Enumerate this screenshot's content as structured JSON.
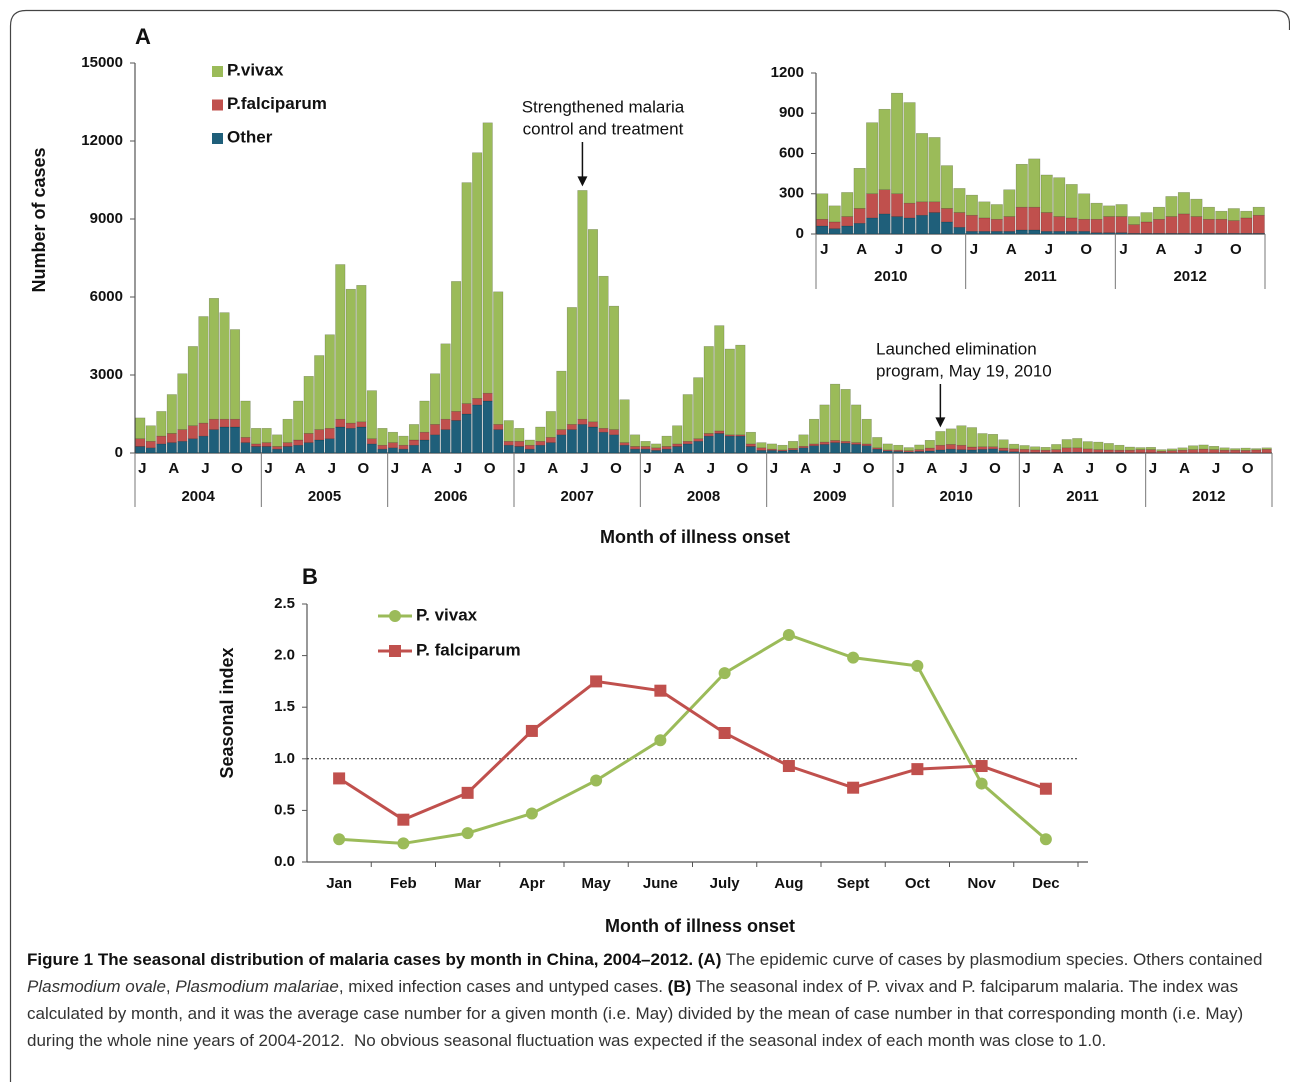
{
  "chart_data": [
    {
      "type": "stacked-bar",
      "panel_label": "A",
      "y_label": "Number of cases",
      "x_label": "Month of illness onset",
      "ylim": [
        0,
        15000
      ],
      "yticks": [
        0,
        3000,
        6000,
        9000,
        12000,
        15000
      ],
      "legend": true,
      "annotations": [
        [
          "Strengthened malaria",
          "control and treatment"
        ],
        [
          "Launched elimination",
          "program, May 19, 2010"
        ]
      ],
      "categories": [
        "J",
        null,
        null,
        "A",
        null,
        null,
        "J",
        null,
        null,
        "O",
        null,
        null,
        "J",
        null,
        null,
        "A",
        null,
        null,
        "J",
        null,
        null,
        "O",
        null,
        null,
        "J",
        null,
        null,
        "A",
        null,
        null,
        "J",
        null,
        null,
        "O",
        null,
        null,
        "J",
        null,
        null,
        "A",
        null,
        null,
        "J",
        null,
        null,
        "O",
        null,
        null,
        "J",
        null,
        null,
        "A",
        null,
        null,
        "J",
        null,
        null,
        "O",
        null,
        null,
        "J",
        null,
        null,
        "A",
        null,
        null,
        "J",
        null,
        null,
        "O",
        null,
        null,
        "J",
        null,
        null,
        "A",
        null,
        null,
        "J",
        null,
        null,
        "O",
        null,
        null,
        "J",
        null,
        null,
        "A",
        null,
        null,
        "J",
        null,
        null,
        "O",
        null,
        null,
        "J",
        null,
        null,
        "A",
        null,
        null,
        "J",
        null,
        null,
        "O",
        null,
        null
      ],
      "groups": [
        "2004",
        "2005",
        "2006",
        "2007",
        "2008",
        "2009",
        "2010",
        "2011",
        "2012"
      ],
      "series": [
        {
          "name": "Other",
          "color": "#1f5f7a",
          "values": [
            250,
            200,
            350,
            400,
            450,
            550,
            650,
            900,
            1000,
            1000,
            400,
            250,
            250,
            150,
            250,
            300,
            400,
            500,
            550,
            1000,
            950,
            1000,
            350,
            150,
            200,
            150,
            300,
            500,
            700,
            900,
            1250,
            1500,
            1850,
            2000,
            900,
            300,
            250,
            150,
            300,
            400,
            700,
            900,
            1100,
            1000,
            800,
            700,
            300,
            150,
            150,
            100,
            150,
            250,
            350,
            450,
            650,
            750,
            650,
            650,
            250,
            100,
            100,
            80,
            120,
            200,
            280,
            330,
            400,
            380,
            330,
            280,
            150,
            80,
            60,
            40,
            60,
            80,
            120,
            150,
            130,
            120,
            140,
            160,
            90,
            50,
            20,
            20,
            20,
            20,
            30,
            30,
            20,
            20,
            20,
            20,
            10,
            10,
            10,
            5,
            5,
            5,
            5,
            5,
            5,
            5,
            5,
            5,
            5,
            5
          ]
        },
        {
          "name": "P.falciparum",
          "color": "#c0504d",
          "values": [
            300,
            250,
            300,
            350,
            450,
            500,
            500,
            400,
            300,
            300,
            200,
            100,
            150,
            100,
            150,
            200,
            350,
            400,
            400,
            300,
            200,
            200,
            200,
            150,
            200,
            150,
            200,
            300,
            400,
            400,
            350,
            400,
            250,
            300,
            200,
            150,
            200,
            150,
            150,
            200,
            200,
            200,
            200,
            200,
            150,
            200,
            100,
            100,
            100,
            100,
            100,
            100,
            100,
            100,
            100,
            100,
            50,
            50,
            100,
            100,
            50,
            40,
            60,
            60,
            70,
            90,
            80,
            70,
            70,
            70,
            50,
            40,
            50,
            50,
            70,
            110,
            180,
            180,
            170,
            110,
            100,
            80,
            100,
            110,
            120,
            100,
            90,
            110,
            170,
            170,
            140,
            110,
            100,
            90,
            100,
            120,
            120,
            65,
            85,
            105,
            125,
            145,
            125,
            105,
            105,
            95,
            115,
            135
          ]
        },
        {
          "name": "P.vivax",
          "color": "#9bbb59",
          "values": [
            800,
            600,
            950,
            1500,
            2150,
            3050,
            4100,
            4650,
            4100,
            3450,
            1400,
            600,
            550,
            450,
            900,
            1500,
            2200,
            2850,
            3600,
            5950,
            5150,
            5250,
            1850,
            650,
            400,
            350,
            600,
            1200,
            1950,
            2900,
            5000,
            8500,
            9450,
            10400,
            5100,
            800,
            500,
            200,
            550,
            1000,
            2250,
            4500,
            8800,
            7400,
            5850,
            4750,
            1650,
            450,
            200,
            150,
            400,
            700,
            1800,
            2350,
            3350,
            4050,
            3300,
            3450,
            450,
            200,
            200,
            180,
            270,
            440,
            950,
            1430,
            2170,
            2000,
            1450,
            950,
            400,
            230,
            190,
            120,
            180,
            300,
            530,
            600,
            750,
            750,
            510,
            480,
            320,
            180,
            150,
            120,
            110,
            200,
            320,
            360,
            280,
            290,
            250,
            190,
            120,
            80,
            90,
            60,
            70,
            90,
            150,
            160,
            130,
            90,
            60,
            90,
            50,
            60
          ]
        }
      ]
    },
    {
      "type": "stacked-bar",
      "ylim": [
        0,
        1200
      ],
      "yticks": [
        0,
        300,
        600,
        900,
        1200
      ],
      "legend": false,
      "categories": [
        "J",
        null,
        null,
        "A",
        null,
        null,
        "J",
        null,
        null,
        "O",
        null,
        null,
        "J",
        null,
        null,
        "A",
        null,
        null,
        "J",
        null,
        null,
        "O",
        null,
        null,
        "J",
        null,
        null,
        "A",
        null,
        null,
        "J",
        null,
        null,
        "O",
        null,
        null
      ],
      "groups": [
        "2010",
        "2011",
        "2012"
      ],
      "series": [
        {
          "name": "Other",
          "color": "#1f5f7a",
          "values": [
            60,
            40,
            60,
            80,
            120,
            150,
            130,
            120,
            140,
            160,
            90,
            50,
            20,
            20,
            20,
            20,
            30,
            30,
            20,
            20,
            20,
            20,
            10,
            10,
            10,
            5,
            5,
            5,
            5,
            5,
            5,
            5,
            5,
            5,
            5,
            5
          ]
        },
        {
          "name": "P.falciparum",
          "color": "#c0504d",
          "values": [
            50,
            50,
            70,
            110,
            180,
            180,
            170,
            110,
            100,
            80,
            100,
            110,
            120,
            100,
            90,
            110,
            170,
            170,
            140,
            110,
            100,
            90,
            100,
            120,
            120,
            65,
            85,
            105,
            125,
            145,
            125,
            105,
            105,
            95,
            115,
            135
          ]
        },
        {
          "name": "P.vivax",
          "color": "#9bbb59",
          "values": [
            190,
            120,
            180,
            300,
            530,
            600,
            750,
            750,
            510,
            480,
            320,
            180,
            150,
            120,
            110,
            200,
            320,
            360,
            280,
            290,
            250,
            190,
            120,
            80,
            90,
            60,
            70,
            90,
            150,
            160,
            130,
            90,
            60,
            90,
            50,
            60
          ]
        }
      ]
    },
    {
      "type": "line",
      "panel_label": "B",
      "y_label": "Seasonal index",
      "x_label": "Month of illness onset",
      "ylim": [
        0,
        2.5
      ],
      "yticks": [
        {
          "value": 0,
          "label": "0.0"
        },
        {
          "value": 0.5,
          "label": "0.5"
        },
        {
          "value": 1,
          "label": "1.0"
        },
        {
          "value": 1.5,
          "label": "1.5"
        },
        {
          "value": 2,
          "label": "2.0"
        },
        {
          "value": 2.5,
          "label": "2.5"
        }
      ],
      "reference_line": 1,
      "categories": [
        "Jan",
        "Feb",
        "Mar",
        "Apr",
        "May",
        "June",
        "July",
        "Aug",
        "Sept",
        "Oct",
        "Nov",
        "Dec"
      ],
      "series": [
        {
          "name": "P. vivax",
          "color": "#9bbb59",
          "marker": "circle",
          "values": [
            0.22,
            0.18,
            0.28,
            0.47,
            0.79,
            1.18,
            1.83,
            2.2,
            1.98,
            1.9,
            0.76,
            0.22
          ]
        },
        {
          "name": "P. falciparum",
          "color": "#c0504d",
          "marker": "square",
          "values": [
            0.81,
            0.41,
            0.67,
            1.27,
            1.75,
            1.66,
            1.25,
            0.93,
            0.72,
            0.9,
            0.93,
            0.71
          ]
        }
      ]
    }
  ],
  "caption": [
    {
      "text": "Figure 1 The seasonal distribution of malaria cases by month in China, 2004–2012. (A)",
      "style": "bold"
    },
    {
      "text": " The epidemic curve of cases by plasmodium species. Others contained ",
      "style": "normal"
    },
    {
      "text": "Plasmodium ovale",
      "style": "italic"
    },
    {
      "text": ", ",
      "style": "normal"
    },
    {
      "text": "Plasmodium malariae",
      "style": "italic"
    },
    {
      "text": ", mixed infection cases and untyped cases. ",
      "style": "normal"
    },
    {
      "text": "(B)",
      "style": "bold"
    },
    {
      "text": " The seasonal index of P. vivax and P. falciparum malaria. The index was calculated by month, and it was the average case number for a given month (i.e. May) divided by the mean of case number in that corresponding month (i.e. May) during the whole nine years of 2004-2012.  No obvious seasonal fluctuation was expected if the seasonal index of each month was close to 1.0.",
      "style": "normal"
    }
  ]
}
